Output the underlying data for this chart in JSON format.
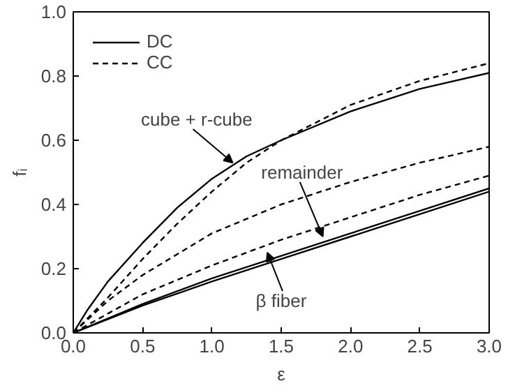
{
  "chart_data": {
    "type": "line",
    "xlabel": "ε",
    "ylabel": "fᵢ",
    "xlim": [
      0,
      3
    ],
    "ylim": [
      0,
      1
    ],
    "xticks": [
      {
        "value": 0,
        "label": "0.0"
      },
      0.5,
      {
        "value": 1,
        "label": "1.0"
      },
      1.5,
      {
        "value": 2,
        "label": "2.0"
      },
      2.5,
      {
        "value": 3,
        "label": "3.0"
      }
    ],
    "yticks": [
      {
        "value": 0,
        "label": "0.0"
      },
      0.2,
      0.4,
      0.6,
      0.8,
      {
        "value": 1,
        "label": "1.0"
      }
    ],
    "grid": false,
    "legend": "top left",
    "marker": "none",
    "series": [
      {
        "name": "DC",
        "color": "#000000",
        "line_style": "solid",
        "x": [
          0,
          0.1,
          0.25,
          0.5,
          0.75,
          1.0,
          1.25,
          1.5,
          2.0,
          2.5,
          3.0
        ],
        "values": [
          0,
          0.07,
          0.16,
          0.28,
          0.39,
          0.48,
          0.55,
          0.6,
          0.69,
          0.76,
          0.81
        ]
      },
      {
        "name": "CC",
        "color": "#000000",
        "line_style": "dashed",
        "x": [
          0,
          0.25,
          0.5,
          0.75,
          1.0,
          1.25,
          1.5,
          2.0,
          2.5,
          3.0
        ],
        "values": [
          0,
          0.11,
          0.23,
          0.34,
          0.44,
          0.53,
          0.6,
          0.71,
          0.785,
          0.84
        ]
      },
      {
        "color": "#000000",
        "line_style": "dashed",
        "x": [
          0,
          0.25,
          0.5,
          1.0,
          1.5,
          2.0,
          2.5,
          3.0
        ],
        "values": [
          0,
          0.1,
          0.18,
          0.31,
          0.4,
          0.47,
          0.53,
          0.58
        ]
      },
      {
        "color": "#000000",
        "line_style": "dashed",
        "x": [
          0,
          0.25,
          0.5,
          1.0,
          1.5,
          2.0,
          2.5,
          3.0
        ],
        "values": [
          0,
          0.06,
          0.12,
          0.21,
          0.29,
          0.36,
          0.43,
          0.49
        ]
      },
      {
        "color": "#000000",
        "line_style": "solid",
        "x": [
          0,
          0.5,
          1.0,
          1.5,
          2.0,
          2.5,
          3.0
        ],
        "values": [
          0,
          0.09,
          0.17,
          0.24,
          0.31,
          0.38,
          0.45
        ]
      },
      {
        "color": "#000000",
        "line_style": "solid",
        "x": [
          0,
          0.5,
          1.0,
          1.5,
          2.0,
          2.5,
          3.0
        ],
        "values": [
          0,
          0.085,
          0.16,
          0.23,
          0.3,
          0.37,
          0.44
        ]
      }
    ],
    "annotations": [
      {
        "text": "cube + r-cube",
        "x": 1.15,
        "y": 0.53
      },
      {
        "text": "remainder",
        "x": 1.8,
        "y": 0.3
      },
      {
        "text": "β fiber",
        "x": 1.4,
        "y": 0.25
      }
    ]
  }
}
